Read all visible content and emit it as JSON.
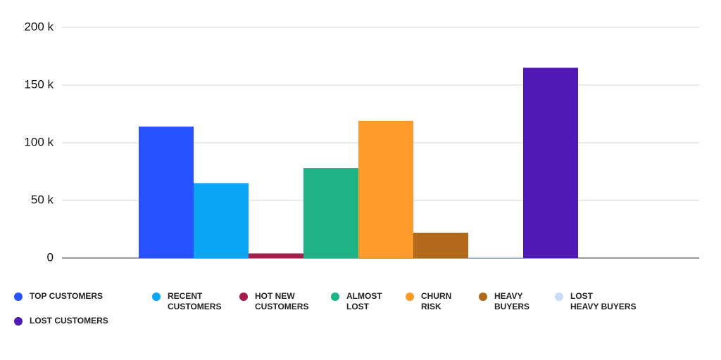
{
  "chart_data": {
    "type": "bar",
    "series": [
      {
        "name": "TOP CUSTOMERS",
        "color": "#2653ff",
        "values": [
          114000
        ]
      },
      {
        "name": "RECENT\nCUSTOMERS",
        "color": "#0aa6f5",
        "values": [
          65000
        ]
      },
      {
        "name": "HOT NEW\nCUSTOMERS",
        "color": "#a51d4a",
        "values": [
          4000
        ]
      },
      {
        "name": "ALMOST\nLOST",
        "color": "#1db386",
        "values": [
          78000
        ]
      },
      {
        "name": "CHURN\nRISK",
        "color": "#fd9a2a",
        "values": [
          119000
        ]
      },
      {
        "name": "HEAVY\nBUYERS",
        "color": "#b2691b",
        "values": [
          22000
        ]
      },
      {
        "name": "LOST\nHEAVY BUYERS",
        "color": "#c8dcf5",
        "values": [
          1000
        ]
      },
      {
        "name": "LOST CUSTOMERS",
        "color": "#5018b5",
        "values": [
          165000
        ]
      }
    ],
    "ylim": [
      0,
      200000
    ],
    "yticks": [
      0,
      {
        "value": 50000,
        "label": "50 k"
      },
      {
        "value": 100000,
        "label": "100 k"
      },
      {
        "value": 150000,
        "label": "150 k"
      },
      {
        "value": 200000,
        "label": "200 k"
      }
    ],
    "grid": true
  }
}
